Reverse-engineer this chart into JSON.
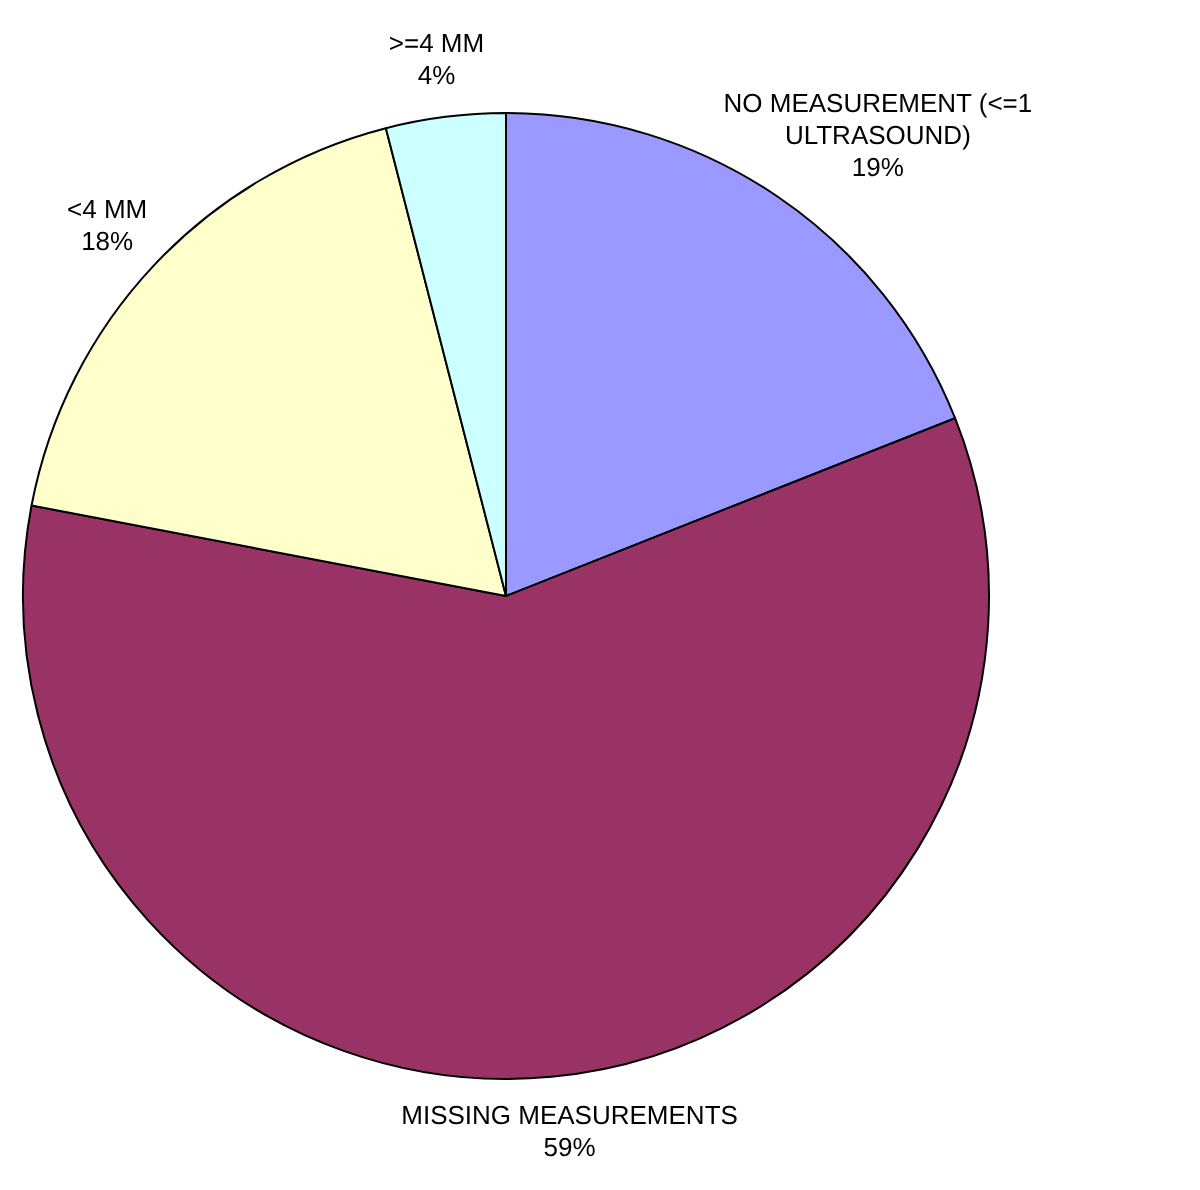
{
  "chart_data": {
    "type": "pie",
    "categories": [
      "NO MEASUREMENT (<=1 ULTRASOUND)",
      "MISSING MEASUREMENTS",
      "<4 MM",
      ">=4 MM"
    ],
    "values": [
      19,
      59,
      18,
      4
    ],
    "value_labels": [
      "19%",
      "59%",
      "18%",
      "4%"
    ],
    "colors": [
      "#9999ff",
      "#993366",
      "#ffffcc",
      "#ccffff"
    ],
    "legend": false
  }
}
